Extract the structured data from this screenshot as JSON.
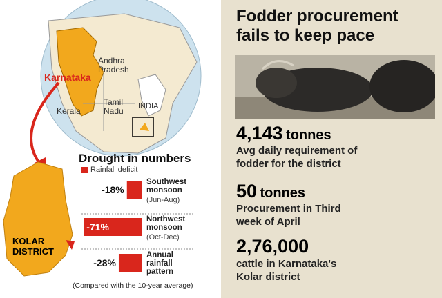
{
  "map": {
    "state": "Karnataka",
    "neighbours": [
      "Andhra Pradesh",
      "Tamil Nadu",
      "Kerala"
    ],
    "country": "INDIA",
    "district": "KOLAR DISTRICT"
  },
  "drought": {
    "title": "Drought in numbers",
    "legend": "Rainfall deficit",
    "rows": [
      {
        "value": -18,
        "value_label": "-18%",
        "name": "Southwest monsoon",
        "period": "(Jun-Aug)"
      },
      {
        "value": -71,
        "value_label": "-71%",
        "name": "Northwest monsoon",
        "period": "(Oct-Dec)"
      },
      {
        "value": -28,
        "value_label": "-28%",
        "name": "Annual rainfall pattern",
        "period": null
      }
    ],
    "note": "(Compared with the 10-year average)"
  },
  "facts": {
    "title": "Fodder procurement fails to keep pace",
    "items": [
      {
        "number": "4,143",
        "unit": "tonnes",
        "text": "Avg daily requirement of fodder for the district"
      },
      {
        "number": "50",
        "unit": "tonnes",
        "text": "Procurement in Third week of April"
      },
      {
        "number": "2,76,000",
        "unit": null,
        "text": "cattle in Karnataka's Kolar district"
      }
    ]
  }
}
